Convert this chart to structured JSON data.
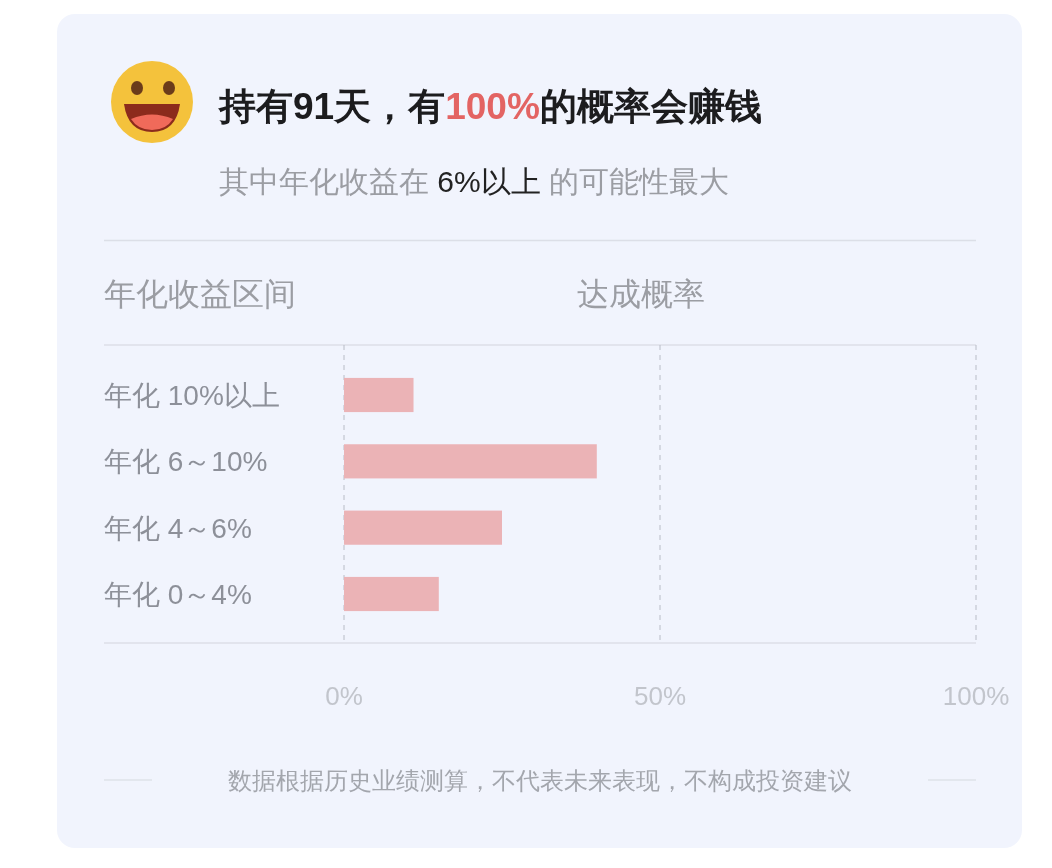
{
  "chart_data": {
    "type": "bar",
    "orientation": "horizontal",
    "title": "持有91天，有100%的概率会赚钱",
    "subtitle": "其中年化收益在 6%以上 的可能性最大",
    "ylabel": "年化收益区间",
    "xlabel": "达成概率",
    "categories": [
      "年化 10%以上",
      "年化 6～10%",
      "年化 4～6%",
      "年化 0～4%"
    ],
    "values": [
      11,
      40,
      25,
      15
    ],
    "color": "#ebb3b6",
    "xlim": [
      0,
      100
    ],
    "xticks": [
      {
        "value": 0,
        "label": "0%"
      },
      {
        "value": 50,
        "label": "50%"
      },
      {
        "value": 100,
        "label": "100%"
      }
    ],
    "grid": "x",
    "annotations": [
      "数据根据历史业绩测算，不代表未来表现，不构成投资建议"
    ]
  }
}
